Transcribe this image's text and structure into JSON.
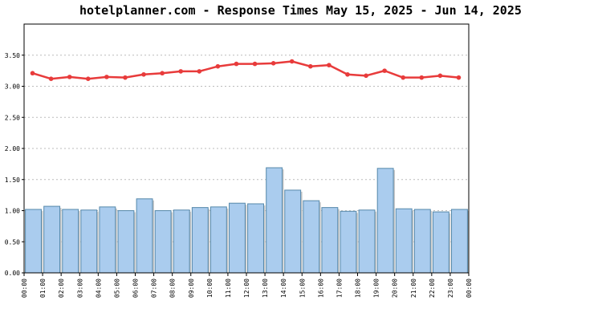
{
  "chart_data": {
    "type": "bar",
    "title": "hotelplanner.com - Response Times May 15, 2025 - Jun 14, 2025",
    "xlabel": "",
    "ylabel": "",
    "ylim": [
      0,
      4.0
    ],
    "yticks": [
      "0.00",
      "0.50",
      "1.00",
      "1.50",
      "2.00",
      "2.50",
      "3.00",
      "3.50"
    ],
    "categories": [
      "00:00",
      "01:00",
      "02:00",
      "03:00",
      "04:00",
      "05:00",
      "06:00",
      "07:00",
      "08:00",
      "09:00",
      "10:00",
      "11:00",
      "12:00",
      "13:00",
      "14:00",
      "15:00",
      "16:00",
      "17:00",
      "18:00",
      "19:00",
      "20:00",
      "21:00",
      "22:00",
      "23:00",
      "00:00"
    ],
    "bar_values": [
      1.02,
      1.07,
      1.02,
      1.01,
      1.06,
      1.0,
      1.19,
      1.0,
      1.01,
      1.05,
      1.06,
      1.12,
      1.11,
      1.69,
      1.33,
      1.16,
      1.05,
      0.99,
      1.01,
      1.68,
      1.03,
      1.02,
      0.98,
      1.02
    ],
    "line_values": [
      3.21,
      3.12,
      3.15,
      3.12,
      3.15,
      3.14,
      3.19,
      3.21,
      3.24,
      3.24,
      3.32,
      3.36,
      3.36,
      3.37,
      3.4,
      3.32,
      3.34,
      3.19,
      3.17,
      3.25,
      3.14,
      3.14,
      3.17,
      3.14
    ],
    "grid": true,
    "colors": {
      "bar_fill": "#aaccee",
      "bar_edge": "#5588aa",
      "line": "#e83b3b",
      "grid": "#bbbbbb",
      "axis": "#000000"
    }
  }
}
